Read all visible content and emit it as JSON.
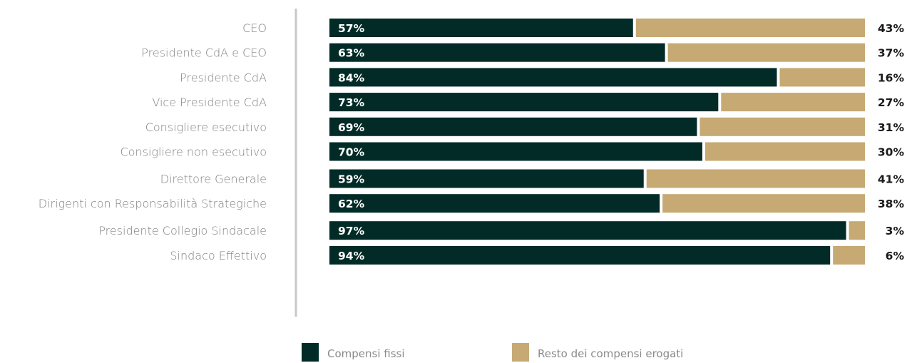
{
  "chart_data": {
    "type": "bar",
    "orientation": "horizontal",
    "stacked": true,
    "categories": [
      "CEO",
      "Presidente CdA e CEO",
      "Presidente CdA",
      "Vice Presidente CdA",
      "Consigliere esecutivo",
      "Consigliere non esecutivo",
      "Direttore Generale",
      "Dirigenti con Responsabilità Strategiche",
      "Presidente Collegio Sindacale",
      "Sindaco Effettivo"
    ],
    "groups": [
      [
        0,
        1,
        2,
        3,
        4,
        5
      ],
      [
        6,
        7
      ],
      [
        8,
        9
      ]
    ],
    "series": [
      {
        "name": "Compensi fissi",
        "color": "#022b27",
        "values": [
          57,
          63,
          84,
          73,
          69,
          70,
          59,
          62,
          97,
          94
        ],
        "labels": [
          "57%",
          "63%",
          "84%",
          "73%",
          "69%",
          "70%",
          "59%",
          "62%",
          "97%",
          "94%"
        ]
      },
      {
        "name": "Resto dei compensi erogati",
        "color": "#c6a973",
        "values": [
          43,
          37,
          16,
          27,
          31,
          30,
          41,
          38,
          3,
          6
        ],
        "labels": [
          "43%",
          "37%",
          "16%",
          "27%",
          "31%",
          "30%",
          "41%",
          "38%",
          "3%",
          "6%"
        ]
      }
    ],
    "xlim": [
      0,
      100
    ],
    "legend_position": "bottom",
    "grid": false
  },
  "colors": {
    "axis_line": "#c8c8c8"
  }
}
